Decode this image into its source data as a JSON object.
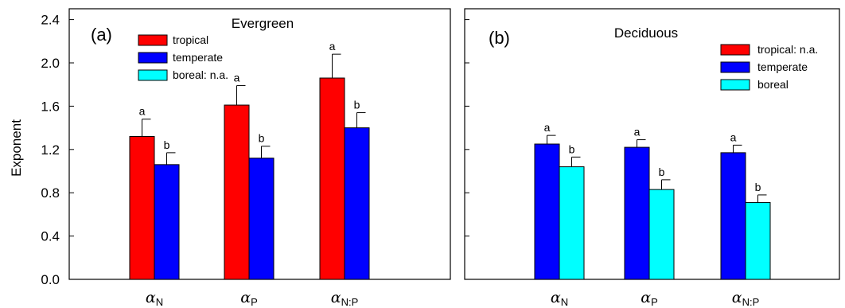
{
  "chart_data": {
    "type": "bar",
    "y_ticks": [
      "0.0",
      "0.4",
      "0.8",
      "1.2",
      "1.6",
      "2.0",
      "2.4"
    ],
    "ylim": [
      0,
      2.5
    ],
    "ylabel": "Exponent",
    "category_symbol": "α",
    "categories": [
      {
        "sub": "N"
      },
      {
        "sub": "P"
      },
      {
        "sub": "N:P"
      }
    ],
    "colors": {
      "tropical": "#ff0000",
      "temperate": "#0000ff",
      "boreal": "#00ffff"
    },
    "panels": [
      {
        "label": "(a)",
        "title": "Evergreen",
        "legend": [
          {
            "key": "tropical",
            "text": "tropical"
          },
          {
            "key": "temperate",
            "text": "temperate"
          },
          {
            "key": "boreal",
            "text": "boreal: n.a."
          }
        ],
        "series": [
          {
            "key": "tropical",
            "values": [
              1.32,
              1.61,
              1.86
            ],
            "errors": [
              0.16,
              0.18,
              0.22
            ],
            "sig": [
              "a",
              "a",
              "a"
            ]
          },
          {
            "key": "temperate",
            "values": [
              1.06,
              1.12,
              1.4
            ],
            "errors": [
              0.11,
              0.11,
              0.14
            ],
            "sig": [
              "b",
              "b",
              "b"
            ]
          }
        ]
      },
      {
        "label": "(b)",
        "title": "Deciduous",
        "legend": [
          {
            "key": "tropical",
            "text": "tropical: n.a."
          },
          {
            "key": "temperate",
            "text": "temperate"
          },
          {
            "key": "boreal",
            "text": "boreal"
          }
        ],
        "series": [
          {
            "key": "temperate",
            "values": [
              1.25,
              1.22,
              1.17
            ],
            "errors": [
              0.08,
              0.07,
              0.07
            ],
            "sig": [
              "a",
              "a",
              "a"
            ]
          },
          {
            "key": "boreal",
            "values": [
              1.04,
              0.83,
              0.71
            ],
            "errors": [
              0.09,
              0.09,
              0.07
            ],
            "sig": [
              "b",
              "b",
              "b"
            ]
          }
        ]
      }
    ]
  }
}
